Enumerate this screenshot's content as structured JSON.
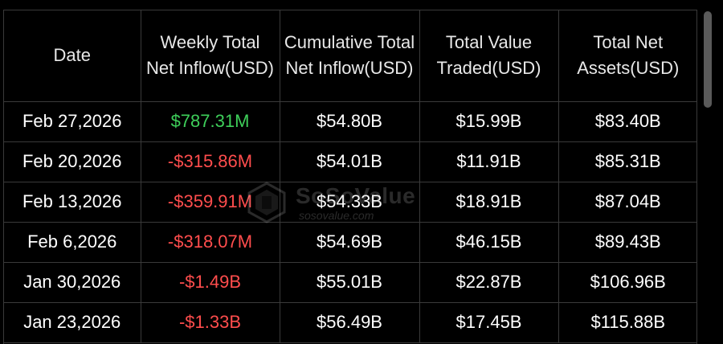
{
  "colors": {
    "background": "#000000",
    "grid": "#3a3a3a",
    "positive": "#3ecf5a",
    "negative": "#ff4d4d",
    "text": "#ffffff"
  },
  "table": {
    "headers": [
      "Date",
      "Weekly Total Net Inflow(USD)",
      "Cumulative Total Net Inflow(USD)",
      "Total Value Traded(USD)",
      "Total Net Assets(USD)"
    ],
    "rows": [
      {
        "date": "Feb 27,2026",
        "weekly": "$787.31M",
        "weekly_sign": "positive",
        "cumulative": "$54.80B",
        "traded": "$15.99B",
        "assets": "$83.40B"
      },
      {
        "date": "Feb 20,2026",
        "weekly": "-$315.86M",
        "weekly_sign": "negative",
        "cumulative": "$54.01B",
        "traded": "$11.91B",
        "assets": "$85.31B"
      },
      {
        "date": "Feb 13,2026",
        "weekly": "-$359.91M",
        "weekly_sign": "negative",
        "cumulative": "$54.33B",
        "traded": "$18.91B",
        "assets": "$87.04B"
      },
      {
        "date": "Feb 6,2026",
        "weekly": "-$318.07M",
        "weekly_sign": "negative",
        "cumulative": "$54.69B",
        "traded": "$46.15B",
        "assets": "$89.43B"
      },
      {
        "date": "Jan 30,2026",
        "weekly": "-$1.49B",
        "weekly_sign": "negative",
        "cumulative": "$55.01B",
        "traded": "$22.87B",
        "assets": "$106.96B"
      },
      {
        "date": "Jan 23,2026",
        "weekly": "-$1.33B",
        "weekly_sign": "negative",
        "cumulative": "$56.49B",
        "traded": "$17.45B",
        "assets": "$115.88B"
      }
    ]
  },
  "watermark": {
    "brand": "SoSoValue",
    "url": "sosovalue.com",
    "icon": "sosovalue-logo-icon"
  },
  "scrollbar": {
    "icon": "vertical-scrollbar"
  }
}
